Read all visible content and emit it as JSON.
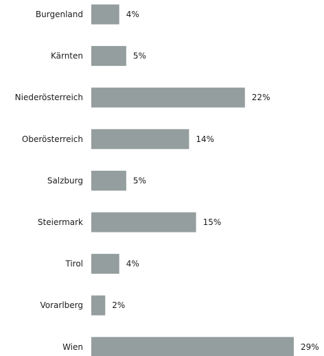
{
  "chart_data": {
    "type": "bar",
    "orientation": "horizontal",
    "categories": [
      "Burgenland",
      "Kärnten",
      "Niederösterreich",
      "Oberösterreich",
      "Salzburg",
      "Steiermark",
      "Tirol",
      "Vorarlberg",
      "Wien"
    ],
    "values": [
      4,
      5,
      22,
      14,
      5,
      15,
      4,
      2,
      29
    ],
    "value_labels": [
      "4%",
      "5%",
      "22%",
      "14%",
      "5%",
      "15%",
      "4%",
      "2%",
      "29%"
    ],
    "title": "",
    "xlabel": "",
    "ylabel": "",
    "xlim": [
      0,
      29
    ],
    "grid": false,
    "bar_color": "#959e9e"
  }
}
